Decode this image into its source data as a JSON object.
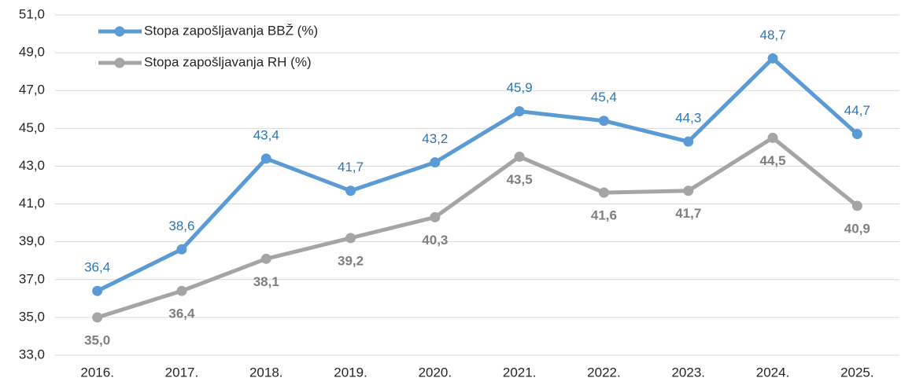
{
  "chart_data": {
    "type": "line",
    "categories": [
      "2016.",
      "2017.",
      "2018.",
      "2019.",
      "2020.",
      "2021.",
      "2022.",
      "2023.",
      "2024.",
      "2025."
    ],
    "series": [
      {
        "name": "Stopa zapošljavanja BBŽ (%)",
        "color": "#5b9bd5",
        "label_color": "#2e75b6",
        "values": [
          36.4,
          38.6,
          43.4,
          41.7,
          43.2,
          45.9,
          45.4,
          44.3,
          48.7,
          44.7
        ],
        "value_labels": [
          "36,4",
          "38,6",
          "43,4",
          "41,7",
          "43,2",
          "45,9",
          "45,4",
          "44,3",
          "48,7",
          "44,7"
        ]
      },
      {
        "name": "Stopa zapošljavanja RH (%)",
        "color": "#a5a5a5",
        "label_color": "#7f7f7f",
        "values": [
          35.0,
          36.4,
          38.1,
          39.2,
          40.3,
          43.5,
          41.6,
          41.7,
          44.5,
          40.9
        ],
        "value_labels": [
          "35,0",
          "36,4",
          "38,1",
          "39,2",
          "40,3",
          "43,5",
          "41,6",
          "41,7",
          "44,5",
          "40,9"
        ]
      }
    ],
    "ylim": [
      33,
      51
    ],
    "yticks": [
      {
        "value": 33,
        "label": "33,0"
      },
      {
        "value": 35,
        "label": "35,0"
      },
      {
        "value": 37,
        "label": "37,0"
      },
      {
        "value": 39,
        "label": "39,0"
      },
      {
        "value": 41,
        "label": "41,0"
      },
      {
        "value": 43,
        "label": "43,0"
      },
      {
        "value": 45,
        "label": "45,0"
      },
      {
        "value": 47,
        "label": "47,0"
      },
      {
        "value": 49,
        "label": "49,0"
      },
      {
        "value": 51,
        "label": "51,0"
      }
    ],
    "grid": true,
    "legend": "upper left"
  }
}
